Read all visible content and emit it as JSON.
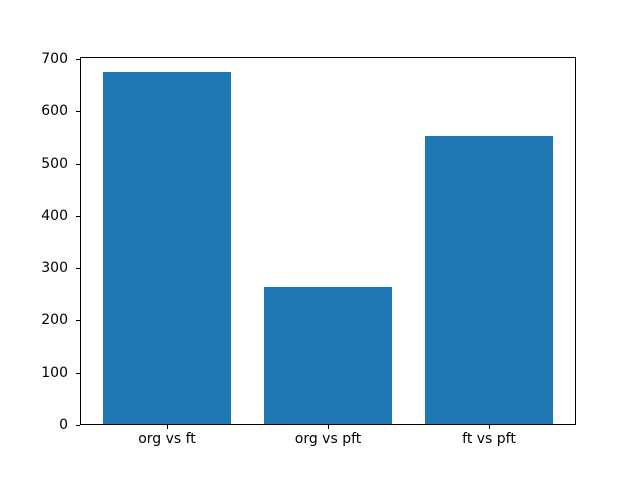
{
  "chart_data": {
    "type": "bar",
    "categories": [
      "org vs ft",
      "org vs pft",
      "ft vs pft"
    ],
    "values": [
      673,
      262,
      550
    ],
    "title": "",
    "xlabel": "",
    "ylabel": "",
    "ylim": [
      0,
      704
    ],
    "yticks": [
      0,
      100,
      200,
      300,
      400,
      500,
      600,
      700
    ],
    "bar_color": "#1f77b4",
    "spine_color": "#000000",
    "background_color": "#ffffff",
    "grid": false,
    "legend": null
  }
}
